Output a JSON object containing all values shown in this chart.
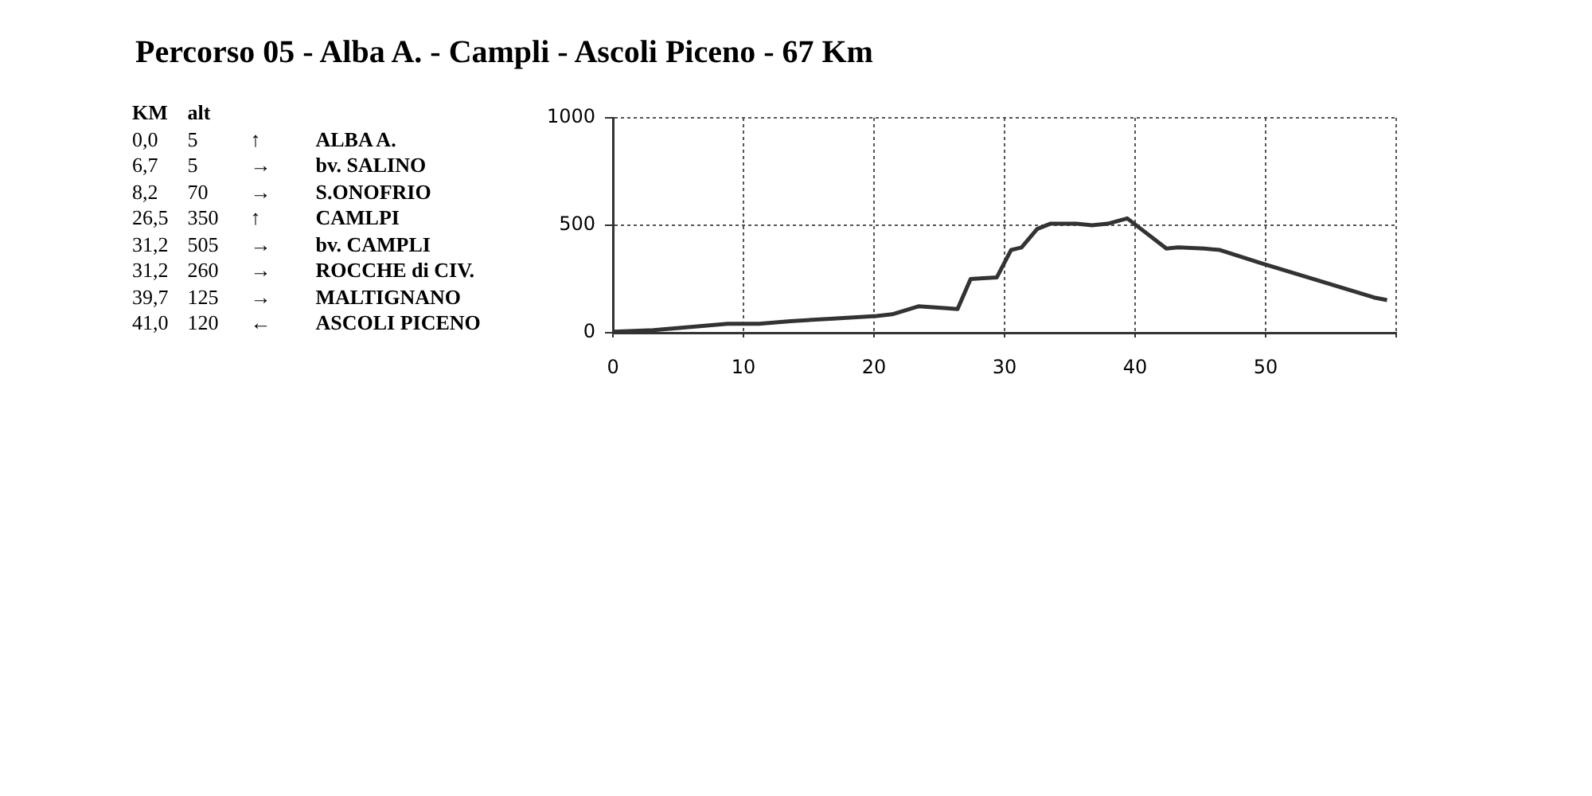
{
  "chart_data": {
    "type": "line",
    "title": "Percorso 05 - Alba A. - Campli - Ascoli Piceno - 67 Km",
    "annotations": [
      "KM",
      "alt",
      "0,0",
      "5",
      "↑",
      "ALBA A.",
      "6,7",
      "5",
      "→",
      "bv. SALINO",
      "8,2",
      "70",
      "→",
      "S.ONOFRIO",
      "26,5",
      "350",
      "↑",
      "CAMLPI",
      "31,2",
      "505",
      "→",
      "bv. CAMPLI",
      "31,2",
      "260",
      "→",
      "ROCCHE di CIV.",
      "39,7",
      "125",
      "→",
      "MALTIGNANO",
      "41,0",
      "120",
      "←",
      "ASCOLI PICENO"
    ],
    "x": [
      0,
      3.1,
      8.8,
      11.2,
      13.6,
      16.9,
      20.2,
      21.4,
      23.4,
      25.4,
      26.4,
      27.4,
      29.4,
      30.5,
      31.3,
      32.5,
      33.5,
      35.5,
      36.7,
      37.9,
      39.4,
      42.4,
      43.3,
      45.3,
      46.5,
      49.7,
      58.3,
      59.3
    ],
    "series": [
      {
        "color": "#333333",
        "values": [
          5,
          12,
          42,
          42,
          54,
          66,
          78,
          86,
          123,
          115,
          110,
          250,
          257,
          385,
          397,
          483,
          507,
          507,
          500,
          507,
          532,
          392,
          397,
          392,
          385,
          323,
          164,
          152
        ]
      }
    ],
    "xlim": [
      0,
      60
    ],
    "xticks": [
      0,
      10,
      20,
      30,
      40,
      50,
      {
        "value": 60,
        "label": null
      }
    ],
    "ylim": [
      0,
      1000
    ],
    "yticks": [
      0,
      500,
      1000
    ],
    "grid": true,
    "legend": false,
    "marker": "none",
    "line_style": "solid"
  }
}
